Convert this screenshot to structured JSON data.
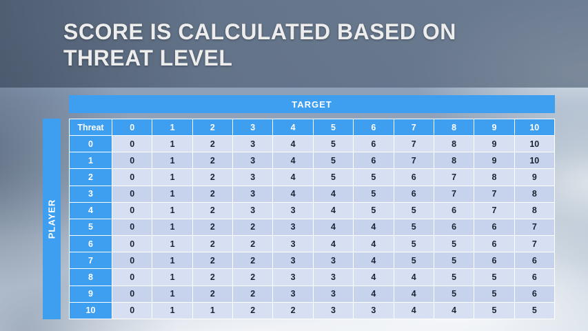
{
  "slide": {
    "title_line1": "SCORE IS CALCULATED BASED ON",
    "title_line2": "THREAT LEVEL"
  },
  "table": {
    "target_label": "TARGET",
    "player_label": "PLAYER",
    "corner_label": "Threat",
    "column_headers": [
      "0",
      "1",
      "2",
      "3",
      "4",
      "5",
      "6",
      "7",
      "8",
      "9",
      "10"
    ],
    "rows": [
      {
        "label": "0",
        "values": [
          "0",
          "1",
          "2",
          "3",
          "4",
          "5",
          "6",
          "7",
          "8",
          "9",
          "10"
        ]
      },
      {
        "label": "1",
        "values": [
          "0",
          "1",
          "2",
          "3",
          "4",
          "5",
          "6",
          "7",
          "8",
          "9",
          "10"
        ]
      },
      {
        "label": "2",
        "values": [
          "0",
          "1",
          "2",
          "3",
          "4",
          "5",
          "5",
          "6",
          "7",
          "8",
          "9"
        ]
      },
      {
        "label": "3",
        "values": [
          "0",
          "1",
          "2",
          "3",
          "4",
          "4",
          "5",
          "6",
          "7",
          "7",
          "8"
        ]
      },
      {
        "label": "4",
        "values": [
          "0",
          "1",
          "2",
          "3",
          "3",
          "4",
          "5",
          "5",
          "6",
          "7",
          "8"
        ]
      },
      {
        "label": "5",
        "values": [
          "0",
          "1",
          "2",
          "2",
          "3",
          "4",
          "4",
          "5",
          "6",
          "6",
          "7"
        ]
      },
      {
        "label": "6",
        "values": [
          "0",
          "1",
          "2",
          "2",
          "3",
          "4",
          "4",
          "5",
          "5",
          "6",
          "7"
        ]
      },
      {
        "label": "7",
        "values": [
          "0",
          "1",
          "2",
          "2",
          "3",
          "3",
          "4",
          "5",
          "5",
          "6",
          "6"
        ]
      },
      {
        "label": "8",
        "values": [
          "0",
          "1",
          "2",
          "2",
          "3",
          "3",
          "4",
          "4",
          "5",
          "5",
          "6"
        ]
      },
      {
        "label": "9",
        "values": [
          "0",
          "1",
          "2",
          "2",
          "3",
          "3",
          "4",
          "4",
          "5",
          "5",
          "6"
        ]
      },
      {
        "label": "10",
        "values": [
          "0",
          "1",
          "1",
          "2",
          "2",
          "3",
          "3",
          "4",
          "4",
          "5",
          "5"
        ]
      }
    ]
  },
  "colors": {
    "accent_blue": "#3E9EF0",
    "band_overlay": "#566378",
    "row_light": "#D7E0F2",
    "row_dark": "#C7D2EC",
    "title_text": "#EDEDED",
    "cell_text": "#1C2433"
  }
}
